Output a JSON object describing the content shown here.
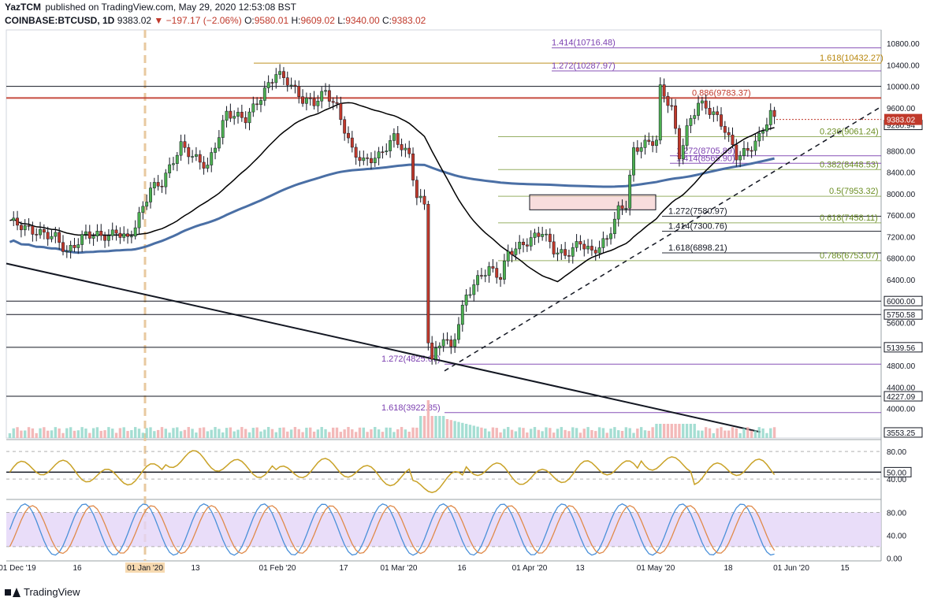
{
  "header": {
    "author": "YazTCM",
    "published": "published on TradingView.com, May 29, 2020 12:53:08 BST"
  },
  "ticker": {
    "symbol": "COINBASE:BTCUSD, 1D",
    "last": "9383.02",
    "change": "−197.17 (−2.06%)",
    "o_label": "O:",
    "o": "9580.01",
    "h_label": "H:",
    "h": "9609.02",
    "l_label": "L:",
    "l": "9340.00",
    "c_label": "C:",
    "c": "9383.02"
  },
  "footer": {
    "brand": "TradingView"
  },
  "colors": {
    "up": "#4caf50",
    "down": "#c0392b",
    "ma200": "#4a6fa5",
    "ma100": "#000000",
    "fib_green": "#6b8e23",
    "fib_purple": "#7b3fb0",
    "fib_gold": "#b8860b",
    "resistance": "#c0392b",
    "rsi": "#c9a227",
    "stoch_k": "#4a90d9",
    "stoch_d": "#e08a4a",
    "stoch_band": "#e3d4f7"
  },
  "chart_data": {
    "type": "candlestick",
    "price_axis": {
      "ticks": [
        "10800.00",
        "10400.00",
        "10000.00",
        "9600.00",
        "9280.94",
        "8800.00",
        "8400.00",
        "8000.00",
        "7600.00",
        "7200.00",
        "6800.00",
        "6400.00",
        "6000.00",
        "5750.58",
        "5600.00",
        "5139.56",
        "4800.00",
        "4400.00",
        "4227.09",
        "4000.00",
        "3553.25"
      ],
      "ylim": [
        3450,
        11050
      ]
    },
    "last_price_label": "9383.02",
    "time_axis": {
      "labels": [
        "01 Dec '19",
        "16",
        "01 Jan '20",
        "13",
        "01 Feb '20",
        "17",
        "01 Mar '20",
        "16",
        "01 Apr '20",
        "13",
        "01 May '20",
        "18",
        "01 Jun '20",
        "15"
      ],
      "highlight": "01 Jan '20"
    },
    "fib_levels": [
      {
        "label": "1.414(10716.48)",
        "price": 10716.48,
        "color": "purple"
      },
      {
        "label": "1.618(10432.27)",
        "price": 10432.27,
        "color": "gold"
      },
      {
        "label": "1.272(10287.97)",
        "price": 10287.97,
        "color": "purple"
      },
      {
        "label": "0.886(9783.37)",
        "price": 9783.37,
        "color": "red"
      },
      {
        "label": "0.236(9061.24)",
        "price": 9061.24,
        "color": "green"
      },
      {
        "label": "1.272(8705.89)",
        "price": 8705.89,
        "color": "purple"
      },
      {
        "label": "1.414(8565.90)",
        "price": 8565.9,
        "color": "purple"
      },
      {
        "label": "0.382(8448.53)",
        "price": 8448.53,
        "color": "green"
      },
      {
        "label": "0.5(7953.32)",
        "price": 7953.32,
        "color": "green"
      },
      {
        "label": "1.272(7580.97)",
        "price": 7580.97,
        "color": "black"
      },
      {
        "label": "0.618(7458.11)",
        "price": 7458.11,
        "color": "green"
      },
      {
        "label": "1.414(7300.76)",
        "price": 7300.76,
        "color": "black"
      },
      {
        "label": "1.618(6898.21)",
        "price": 6898.21,
        "color": "black"
      },
      {
        "label": "0.786(6753.07)",
        "price": 6753.07,
        "color": "green"
      },
      {
        "label": "1.272(4825.67)",
        "price": 4825.67,
        "color": "purple"
      },
      {
        "label": "1.618(3922.85)",
        "price": 3922.85,
        "color": "purple"
      }
    ],
    "horizontal_levels": [
      10000,
      6000,
      5750.58,
      5139.56,
      4227.09
    ],
    "rsi": {
      "ticks": [
        "80.00",
        "50.00",
        "40.00"
      ],
      "ylim": [
        15,
        95
      ]
    },
    "stoch": {
      "ticks": [
        "80.00",
        "40.00",
        "0.00"
      ],
      "ylim": [
        -5,
        100
      ]
    }
  }
}
